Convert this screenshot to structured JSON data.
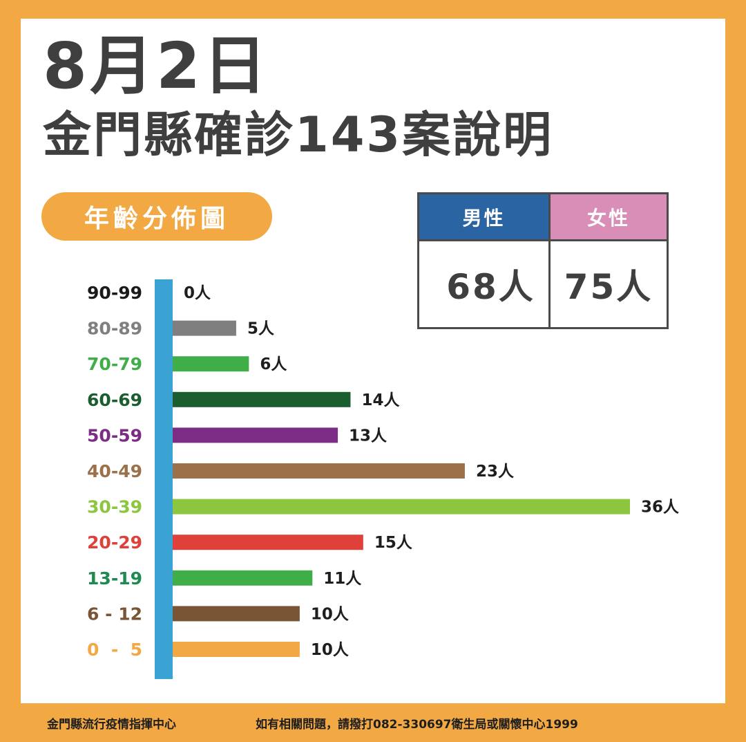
{
  "header": {
    "date": "8月2日",
    "title": "金門縣確診143案說明"
  },
  "section_label": "年齡分佈圖",
  "gender": {
    "male_label": "男性",
    "male_value": "68人",
    "female_label": "女性",
    "female_value": "75人"
  },
  "colors": {
    "background": "#F2A944",
    "axis": "#3AA3D4",
    "male": "#2B64A3",
    "female": "#D98EB8"
  },
  "chart_data": {
    "type": "bar",
    "orientation": "horizontal",
    "categories": [
      "90-99",
      "80-89",
      "70-79",
      "60-69",
      "50-59",
      "40-49",
      "30-39",
      "20-29",
      "13-19",
      "6 - 12",
      "0  -  5"
    ],
    "values": [
      0,
      5,
      6,
      14,
      13,
      23,
      36,
      15,
      11,
      10,
      10
    ],
    "labels": [
      "0人",
      "5人",
      "6人",
      "14人",
      "13人",
      "23人",
      "36人",
      "15人",
      "11人",
      "10人",
      "10人"
    ],
    "colors": [
      "#1a1a1a",
      "#7f7f7f",
      "#3FAE49",
      "#1A5E30",
      "#7B2D85",
      "#9C7049",
      "#8CC63F",
      "#E0403A",
      "#3FAE49",
      "#7A5535",
      "#F2A944"
    ],
    "label_colors": [
      "#1a1a1a",
      "#7f7f7f",
      "#3FAE49",
      "#1A5E30",
      "#7B2D85",
      "#9C7049",
      "#8CC63F",
      "#E0403A",
      "#1E8A50",
      "#7A5535",
      "#F2A944"
    ],
    "xlim": [
      0,
      36
    ]
  },
  "footer": {
    "org": "金門縣流行疫情指揮中心",
    "contact": "如有相關問題，請撥打082-330697衛生局或關懷中心1999"
  }
}
